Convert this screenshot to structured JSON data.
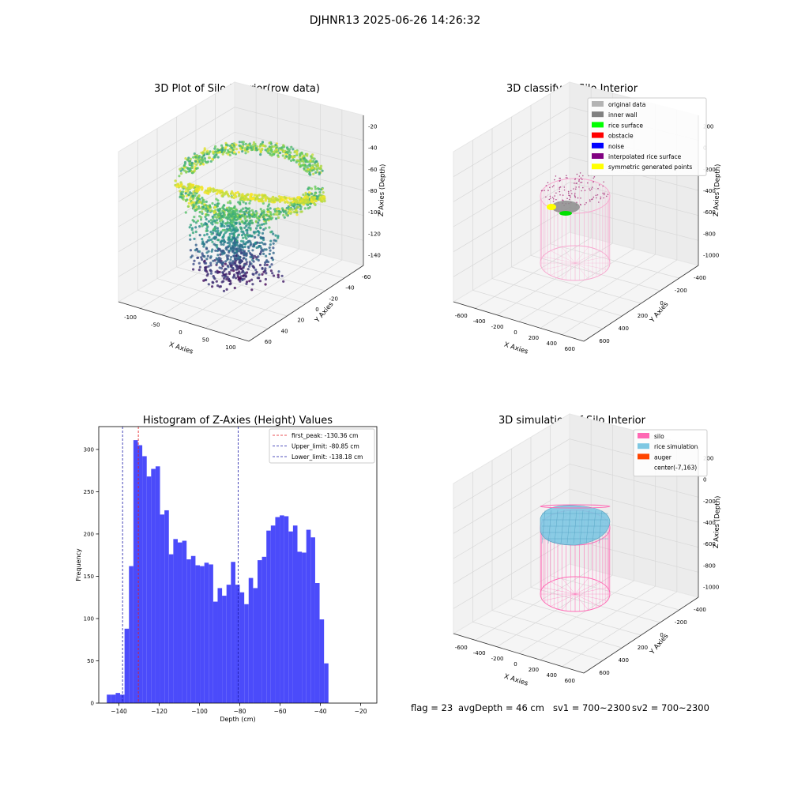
{
  "suptitle": "DJHNR13 2025-06-26 14:26:32",
  "status": {
    "flag": "flag = 23",
    "avg_depth": "avgDepth = 46 cm",
    "sv1": "sv1 = 700~2300",
    "sv2": "sv2 = 700~2300"
  },
  "colors": {
    "histogram": "#4b4bfa",
    "first_peak": "#e41a1c",
    "limit": "#1a1aa8",
    "silo": "#ff69b4",
    "rice": "#7ec8e3",
    "auger": "#ff4500"
  },
  "chart_data": [
    {
      "type": "scatter3d",
      "title": "3D Plot of Silo Interior(row data)",
      "xlabel": "X Axies",
      "ylabel": "Y Axies",
      "zlabel": "Z Axies (Depth)",
      "xlim": [
        -120,
        110
      ],
      "ylim": [
        -60,
        60
      ],
      "zlim": [
        -150,
        -15
      ],
      "x_ticks": [
        "-100",
        "-50",
        "0",
        "50",
        "100"
      ],
      "y_ticks": [
        "-60",
        "-40",
        "-20",
        "0",
        "20",
        "40",
        "60"
      ],
      "z_ticks": [
        "-20",
        "-40",
        "-60",
        "-80",
        "-100",
        "-120",
        "-140"
      ],
      "colormap": "viridis"
    },
    {
      "type": "scatter3d",
      "title": "3D classify of Silo Interior",
      "xlabel": "X Axies",
      "ylabel": "Y Axies",
      "zlabel": "Z Axies (Depth)",
      "x_ticks": [
        "-600",
        "-400",
        "-200",
        "0",
        "200",
        "400",
        "600"
      ],
      "y_ticks": [
        "-400",
        "-200",
        "0",
        "200",
        "400",
        "600"
      ],
      "z_ticks": [
        "200",
        "0",
        "-200",
        "-400",
        "-600",
        "-800",
        "-1000"
      ],
      "legend": [
        {
          "label": "original data",
          "color": "#b4b4b4"
        },
        {
          "label": "inner wall",
          "color": "#808080"
        },
        {
          "label": "rice surface",
          "color": "#00ff00"
        },
        {
          "label": "obstacle",
          "color": "#ff0000"
        },
        {
          "label": "noise",
          "color": "#0000ff"
        },
        {
          "label": "interpolated rice surface",
          "color": "#800080"
        },
        {
          "label": "symmetric generated points",
          "color": "#ffff00"
        }
      ]
    },
    {
      "type": "bar",
      "title": "Histogram of Z-Axies (Height) Values",
      "xlabel": "Depth (cm)",
      "ylabel": "Frequency",
      "xlim": [
        -150,
        -12
      ],
      "ylim": [
        0,
        327
      ],
      "x_ticks": [
        -140,
        -120,
        -100,
        -80,
        -60,
        -40,
        -20
      ],
      "y_ticks": [
        0,
        50,
        100,
        150,
        200,
        250,
        300
      ],
      "bin_start": -146,
      "bin_width": 2.2,
      "values": [
        10,
        10,
        12,
        10,
        88,
        162,
        311,
        305,
        292,
        268,
        277,
        280,
        223,
        228,
        176,
        194,
        190,
        192,
        170,
        174,
        163,
        162,
        166,
        164,
        120,
        136,
        127,
        140,
        167,
        140,
        131,
        117,
        148,
        136,
        169,
        173,
        204,
        210,
        220,
        222,
        221,
        203,
        210,
        179,
        178,
        205,
        196,
        142,
        99,
        47
      ],
      "vlines": [
        {
          "label": "first_peak: -130.36 cm",
          "x": -130.36,
          "kind": "first_peak"
        },
        {
          "label": "Upper_limit: -80.85 cm",
          "x": -80.85,
          "kind": "limit"
        },
        {
          "label": "Lower_limit: -138.18 cm",
          "x": -138.18,
          "kind": "limit"
        }
      ]
    },
    {
      "type": "surface3d",
      "title": "3D simulation of Silo Interior",
      "xlabel": "X Axies",
      "ylabel": "Y Axies",
      "zlabel": "Z Axies (Depth)",
      "x_ticks": [
        "-600",
        "-400",
        "-200",
        "0",
        "200",
        "400",
        "600"
      ],
      "y_ticks": [
        "-400",
        "-200",
        "0",
        "200",
        "400",
        "600"
      ],
      "z_ticks": [
        "200",
        "0",
        "-200",
        "-400",
        "-600",
        "-800",
        "-1000"
      ],
      "legend": [
        {
          "label": "silo",
          "color": "#ff69b4"
        },
        {
          "label": "rice simulation",
          "color": "#7ec8e3"
        },
        {
          "label": "auger",
          "color": "#ff4500"
        },
        {
          "label": "center(-7,163)",
          "color": "none"
        }
      ]
    }
  ]
}
